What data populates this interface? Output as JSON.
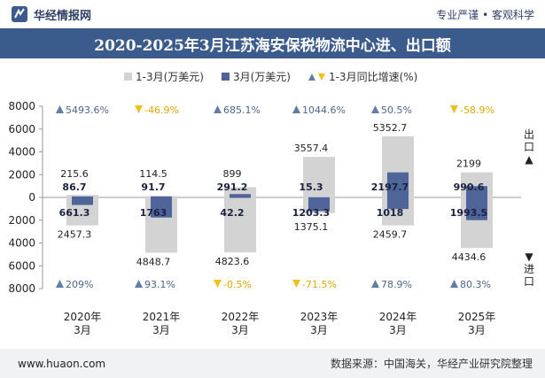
{
  "header": {
    "brand_name": "华经情报网",
    "logo_icon": "huajing-logo-icon",
    "tagline": "专业严谨 • 客观科学"
  },
  "chart_data": {
    "type": "bar",
    "title": "2020-2025年3月江苏海安保税物流中心进、出口额",
    "categories": [
      "2020年\n3月",
      "2021年\n3月",
      "2022年\n3月",
      "2023年\n3月",
      "2024年\n3月",
      "2025年\n3月"
    ],
    "ylim": [
      -8000,
      8000
    ],
    "yticks": [
      8000,
      6000,
      4000,
      2000,
      0,
      -2000,
      -4000,
      -6000,
      -8000
    ],
    "ytick_labels": [
      "8000",
      "6000",
      "4000",
      "2000",
      "0",
      "2000",
      "4000",
      "6000",
      "8000"
    ],
    "grid": false,
    "legend_position": "top",
    "legend": [
      {
        "label": "1-3月(万美元)",
        "marker": "square",
        "color": "#d3d3d3"
      },
      {
        "label": "3月(万美元)",
        "marker": "square",
        "color": "#4f6499"
      },
      {
        "label": "1-3月同比增速(%)",
        "marker": "triangles",
        "color_up": "#5f7fa8",
        "color_down": "#f0c020"
      }
    ],
    "side_labels": {
      "export": "出口▲",
      "import": "▼进口"
    },
    "series": [
      {
        "name": "1-3月(万美元)",
        "direction": "export",
        "values": [
          215.6,
          114.5,
          899,
          3557.4,
          5352.7,
          2199
        ]
      },
      {
        "name": "3月(万美元)",
        "direction": "export",
        "values": [
          86.7,
          91.7,
          291.2,
          15.3,
          2197.7,
          990.6
        ]
      },
      {
        "name": "1-3月(万美元)",
        "direction": "import",
        "values": [
          2457.3,
          4848.7,
          4823.6,
          1375.1,
          2459.7,
          4434.6
        ]
      },
      {
        "name": "3月(万美元)",
        "direction": "import",
        "values": [
          661.3,
          1763,
          42.2,
          1203.3,
          1018,
          1993.5
        ]
      }
    ],
    "export_growth": {
      "values": [
        5493.6,
        -46.9,
        685.1,
        1044.6,
        50.5,
        -58.9
      ],
      "labels": [
        "5493.6%",
        "-46.9%",
        "685.1%",
        "1044.6%",
        "50.5%",
        "-58.9%"
      ]
    },
    "import_growth": {
      "values": [
        209,
        93.1,
        -0.5,
        -71.5,
        78.9,
        80.3
      ],
      "labels": [
        "209%",
        "93.1%",
        "-0.5%",
        "-71.5%",
        "78.9%",
        "80.3%"
      ]
    },
    "colors": {
      "total_bar": "#d3d3d3",
      "month_bar": "#4f6499",
      "up_triangle": "#5f7fa8",
      "down_triangle": "#f0c020",
      "growth_text_up": "#4a6690",
      "growth_text_down": "#e0a800"
    }
  },
  "footer": {
    "site": "www.huaon.com",
    "source": "数据来源：中国海关，华经产业研究院整理"
  }
}
